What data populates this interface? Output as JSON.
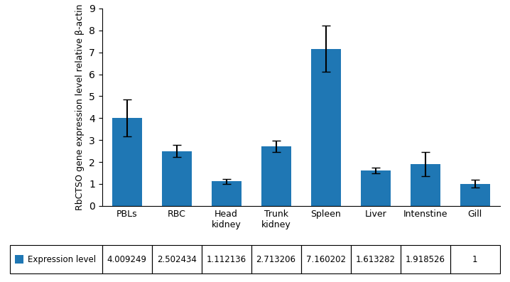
{
  "chart_data": {
    "type": "bar",
    "categories": [
      "PBLs",
      "RBC",
      "Head\nkidney",
      "Trunk\nkidney",
      "Spleen",
      "Liver",
      "Intenstine",
      "Gill"
    ],
    "series": [
      {
        "name": "Expression level",
        "values": [
          4.009249,
          2.502434,
          1.112136,
          2.713206,
          7.160202,
          1.613282,
          1.918526,
          1.0
        ],
        "errors": [
          0.85,
          0.28,
          0.12,
          0.25,
          1.05,
          0.12,
          0.55,
          0.18
        ],
        "value_labels": [
          "4.009249",
          "2.502434",
          "1.112136",
          "2.713206",
          "7.160202",
          "1.613282",
          "1.918526",
          "1"
        ]
      }
    ],
    "ylabel": "RbCTSO gene expression level relative β-actin",
    "ylim": [
      0,
      9
    ],
    "yticks": [
      0,
      1,
      2,
      3,
      4,
      5,
      6,
      7,
      8,
      9
    ]
  }
}
